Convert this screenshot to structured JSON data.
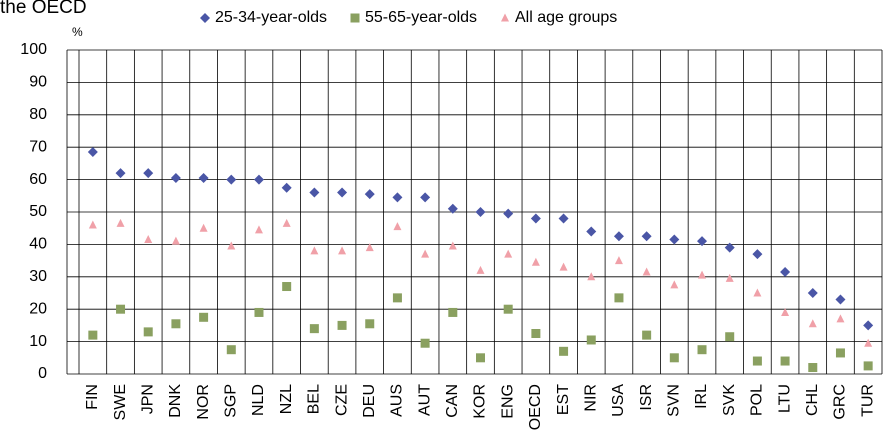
{
  "chart_data": {
    "type": "scatter",
    "title": "the OECD",
    "y_label": "%",
    "categories": [
      "FIN",
      "SWE",
      "JPN",
      "DNK",
      "NOR",
      "SGP",
      "NLD",
      "NZL",
      "BEL",
      "CZE",
      "DEU",
      "AUS",
      "AUT",
      "CAN",
      "KOR",
      "ENG",
      "OECD",
      "EST",
      "NIR",
      "USA",
      "ISR",
      "SVN",
      "IRL",
      "SVK",
      "POL",
      "LTU",
      "CHL",
      "GRC",
      "TUR"
    ],
    "series": [
      {
        "name": "25-34-year-olds",
        "color": "#4a56a6",
        "marker": "diamond",
        "values": [
          68.5,
          62,
          62,
          60.5,
          60.5,
          60,
          60,
          57.5,
          56,
          56,
          55.5,
          54.5,
          54.5,
          51,
          50,
          49.5,
          48,
          48,
          44,
          42.5,
          42.5,
          41.5,
          41,
          39,
          37,
          31.5,
          25,
          23,
          15
        ]
      },
      {
        "name": "55-65-year-olds",
        "color": "#8aa060",
        "marker": "square",
        "values": [
          12,
          20,
          13,
          15.5,
          17.5,
          7.5,
          19,
          27,
          14,
          15,
          15.5,
          23.5,
          9.5,
          19,
          5,
          20,
          12.5,
          7,
          10.5,
          23.5,
          12,
          5,
          7.5,
          11.5,
          4,
          4,
          2,
          6.5,
          2.5
        ]
      },
      {
        "name": "All age groups",
        "color": "#f0a0a8",
        "marker": "triangle",
        "values": [
          46,
          46.5,
          41.5,
          41,
          45,
          39.5,
          44.5,
          46.5,
          38,
          38,
          39,
          45.5,
          37,
          39.5,
          32,
          37,
          34.5,
          33,
          30,
          35,
          31.5,
          27.5,
          30.5,
          29.5,
          25,
          19,
          15.5,
          17,
          9.5
        ]
      }
    ],
    "ylim": [
      0,
      100
    ],
    "yticks": [
      0,
      10,
      20,
      30,
      40,
      50,
      60,
      70,
      80,
      90,
      100
    ],
    "grid": true
  }
}
